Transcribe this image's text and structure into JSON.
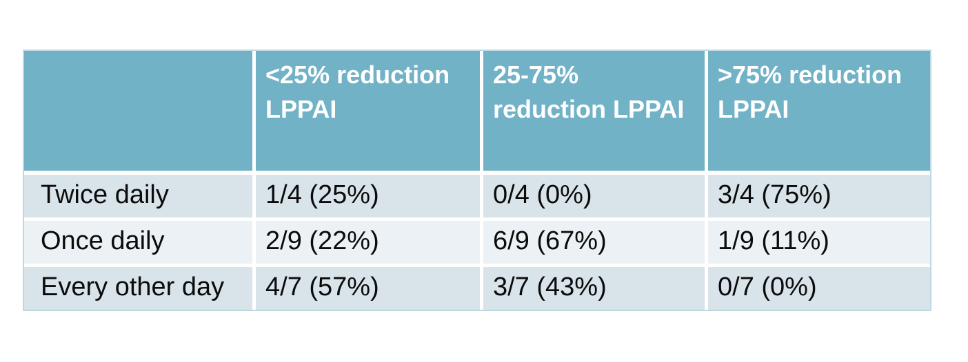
{
  "theme": {
    "header_bg": "#72b2c7",
    "band_dark": "#d8e3ea",
    "band_light": "#ebf1f4",
    "gridline": "#ffffff",
    "outer_border": "#bcd9e2",
    "header_text": "#ffffff",
    "body_text": "#0b0b0b",
    "canvas_bg": "#ffffff"
  },
  "table": {
    "columns": [
      {
        "header": ""
      },
      {
        "header": "<25% reduction\nLPPAI"
      },
      {
        "header": "25-75%\nreduction LPPAI"
      },
      {
        "header": ">75% reduction\nLPPAI"
      }
    ],
    "rows": [
      {
        "label": "Twice daily",
        "values": [
          "1/4 (25%)",
          "0/4 (0%)",
          "3/4 (75%)"
        ]
      },
      {
        "label": "Once daily",
        "values": [
          "2/9 (22%)",
          "6/9 (67%)",
          "1/9 (11%)"
        ]
      },
      {
        "label": "Every other day",
        "values": [
          "4/7 (57%)",
          "3/7 (43%)",
          "0/7 (0%)"
        ]
      }
    ]
  },
  "chart_data": {
    "type": "table",
    "columns": [
      "",
      "<25% reduction LPPAI",
      "25-75% reduction LPPAI",
      ">75% reduction LPPAI"
    ],
    "rows": [
      [
        "Twice daily",
        "1/4 (25%)",
        "0/4 (0%)",
        "3/4 (75%)"
      ],
      [
        "Once daily",
        "2/9 (22%)",
        "6/9 (67%)",
        "1/9 (11%)"
      ],
      [
        "Every other day",
        "4/7 (57%)",
        "3/7 (43%)",
        "0/7 (0%)"
      ]
    ]
  }
}
